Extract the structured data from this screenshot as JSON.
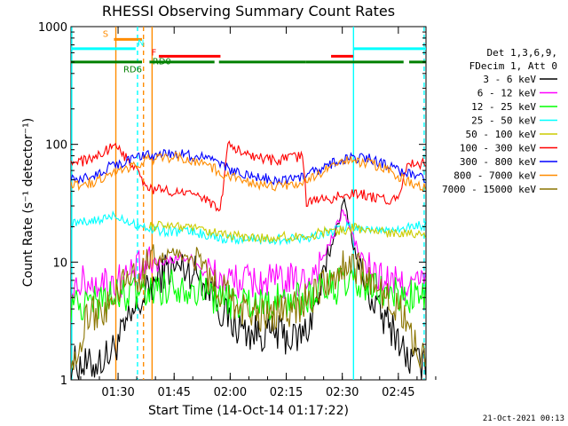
{
  "chart_data": {
    "type": "line",
    "title": "RHESSI Observing Summary Count Rates",
    "xlabel": "Start Time (14-Oct-14 01:17:22)",
    "ylabel": "Count Rate (s⁻¹ detector⁻¹)",
    "xlim_min": [
      0,
      95
    ],
    "x_ticks": [
      {
        "t": 12.6,
        "label": "01:30"
      },
      {
        "t": 27.6,
        "label": "01:45"
      },
      {
        "t": 42.6,
        "label": "02:00"
      },
      {
        "t": 57.6,
        "label": "02:15"
      },
      {
        "t": 72.6,
        "label": "02:30"
      },
      {
        "t": 87.6,
        "label": "02:45"
      }
    ],
    "ylog": true,
    "ylim": [
      1,
      1000
    ],
    "y_ticks": [
      {
        "v": 1,
        "label": "1"
      },
      {
        "v": 10,
        "label": "10"
      },
      {
        "v": 100,
        "label": "100"
      },
      {
        "v": 1000,
        "label": "1000"
      }
    ],
    "legend_header": [
      "Det 1,3,6,9,",
      "FDecim 1, Att 0"
    ],
    "series": [
      {
        "name": "3 - 6 keV",
        "color": "#000000",
        "points": [
          [
            0,
            1.4
          ],
          [
            5,
            1.3
          ],
          [
            10,
            1.6
          ],
          [
            12,
            2.0
          ],
          [
            21,
            6.0
          ],
          [
            25,
            8.5
          ],
          [
            30,
            9.0
          ],
          [
            34,
            8.0
          ],
          [
            38,
            5.5
          ],
          [
            40,
            4.0
          ],
          [
            43,
            3.0
          ],
          [
            48,
            2.5
          ],
          [
            55,
            2.5
          ],
          [
            60,
            2.2
          ],
          [
            63,
            2.6
          ],
          [
            67,
            6
          ],
          [
            70,
            15
          ],
          [
            72,
            25
          ],
          [
            73,
            33
          ],
          [
            74,
            25
          ],
          [
            76,
            12
          ],
          [
            79,
            6
          ],
          [
            83,
            3.5
          ],
          [
            87,
            2.5
          ],
          [
            90,
            1.5
          ],
          [
            95,
            1.3
          ]
        ]
      },
      {
        "name": "6 - 12 keV",
        "color": "#ff00ff",
        "points": [
          [
            0,
            6.6
          ],
          [
            12,
            6.8
          ],
          [
            21,
            9.5
          ],
          [
            26,
            10.5
          ],
          [
            31,
            11.0
          ],
          [
            36,
            9.0
          ],
          [
            40,
            7.0
          ],
          [
            50,
            6.8
          ],
          [
            62,
            6.8
          ],
          [
            66,
            9
          ],
          [
            70,
            16
          ],
          [
            72,
            24
          ],
          [
            73,
            28
          ],
          [
            74,
            22
          ],
          [
            77,
            12
          ],
          [
            81,
            8
          ],
          [
            86,
            6.5
          ],
          [
            95,
            6.5
          ]
        ]
      },
      {
        "name": "12 - 25 keV",
        "color": "#00ff00",
        "points": [
          [
            0,
            4.2
          ],
          [
            12,
            5.0
          ],
          [
            21,
            5.8
          ],
          [
            28,
            6.5
          ],
          [
            35,
            6.0
          ],
          [
            40,
            4.8
          ],
          [
            50,
            4.5
          ],
          [
            62,
            4.8
          ],
          [
            68,
            6
          ],
          [
            74,
            6.5
          ],
          [
            80,
            6
          ],
          [
            86,
            5.2
          ],
          [
            95,
            5.0
          ]
        ]
      },
      {
        "name": "25 - 50 keV",
        "color": "#00ffff",
        "points": [
          [
            0,
            21
          ],
          [
            6,
            22
          ],
          [
            12,
            25
          ],
          [
            21,
            19
          ],
          [
            25,
            18.5
          ],
          [
            33,
            18
          ],
          [
            40,
            16
          ],
          [
            50,
            15.5
          ],
          [
            62,
            16
          ],
          [
            70,
            18.5
          ],
          [
            75,
            20
          ],
          [
            82,
            18.5
          ],
          [
            88,
            19.5
          ],
          [
            95,
            20.5
          ]
        ]
      },
      {
        "name": "50 - 100 keV",
        "color": "#cccc00",
        "points": [
          [
            21,
            20
          ],
          [
            28,
            20.5
          ],
          [
            35,
            18.5
          ],
          [
            40,
            17
          ],
          [
            50,
            16
          ],
          [
            62,
            16.5
          ],
          [
            70,
            18.5
          ],
          [
            76,
            19.5
          ],
          [
            83,
            18
          ],
          [
            88,
            18
          ],
          [
            95,
            17.5
          ]
        ]
      },
      {
        "name": "100 - 300 keV",
        "color": "#ff0000",
        "points": [
          [
            0,
            70
          ],
          [
            6,
            74
          ],
          [
            12,
            100
          ],
          [
            21,
            42
          ],
          [
            28,
            40
          ],
          [
            35,
            35
          ],
          [
            40,
            28
          ],
          [
            42,
            100
          ],
          [
            48,
            80
          ],
          [
            55,
            72
          ],
          [
            62,
            80
          ],
          [
            63,
            32
          ],
          [
            70,
            35
          ],
          [
            76,
            39
          ],
          [
            83,
            34
          ],
          [
            88,
            34
          ],
          [
            90,
            70
          ],
          [
            95,
            68
          ]
        ]
      },
      {
        "name": "300 - 800 keV",
        "color": "#0000ff",
        "points": [
          [
            0,
            50
          ],
          [
            6,
            55
          ],
          [
            12,
            68
          ],
          [
            21,
            82
          ],
          [
            28,
            84
          ],
          [
            35,
            78
          ],
          [
            40,
            66
          ],
          [
            46,
            55
          ],
          [
            55,
            50
          ],
          [
            62,
            52
          ],
          [
            68,
            65
          ],
          [
            74,
            77
          ],
          [
            80,
            76
          ],
          [
            86,
            63
          ],
          [
            90,
            56
          ],
          [
            95,
            52
          ]
        ]
      },
      {
        "name": "800 - 7000 keV",
        "color": "#ff8c00",
        "points": [
          [
            0,
            44
          ],
          [
            6,
            48
          ],
          [
            12,
            58
          ],
          [
            21,
            75
          ],
          [
            28,
            78
          ],
          [
            35,
            70
          ],
          [
            40,
            58
          ],
          [
            46,
            48
          ],
          [
            55,
            44
          ],
          [
            62,
            46
          ],
          [
            68,
            60
          ],
          [
            74,
            72
          ],
          [
            80,
            70
          ],
          [
            86,
            57
          ],
          [
            90,
            48
          ],
          [
            95,
            44
          ]
        ]
      },
      {
        "name": "7000 - 15000 keV",
        "color": "#8b7500",
        "points": [
          [
            0,
            1.5
          ],
          [
            5,
            3.5
          ],
          [
            10,
            4.0
          ],
          [
            12,
            5.5
          ],
          [
            21,
            9.5
          ],
          [
            27,
            12
          ],
          [
            31,
            11
          ],
          [
            36,
            8
          ],
          [
            40,
            5.8
          ],
          [
            44,
            4.5
          ],
          [
            50,
            3.5
          ],
          [
            58,
            3.8
          ],
          [
            64,
            5
          ],
          [
            70,
            8
          ],
          [
            74,
            9.5
          ],
          [
            78,
            8.5
          ],
          [
            83,
            5.5
          ],
          [
            88,
            4.0
          ],
          [
            92,
            2.0
          ],
          [
            95,
            1.5
          ]
        ]
      }
    ],
    "annotations": [
      {
        "text": "S",
        "t": 8.5,
        "v": 820,
        "color": "#ff8c00"
      },
      {
        "text": "N",
        "t": 17.8,
        "v": 690,
        "color": "#00ffff"
      },
      {
        "text": "F",
        "t": 21.5,
        "v": 570,
        "color": "#ff0000"
      },
      {
        "text": "RD0",
        "t": 21.8,
        "v": 480,
        "color": "#008000"
      },
      {
        "text": "RD6",
        "t": 14.0,
        "v": 410,
        "color": "#008000"
      }
    ],
    "flag_bars": [
      {
        "name": "S",
        "color": "#ff8c00",
        "v": 780,
        "ranges": [
          [
            11.5,
            19
          ]
        ]
      },
      {
        "name": "N",
        "color": "#00ffff",
        "v": 650,
        "ranges": [
          [
            0,
            17.3
          ],
          [
            75.5,
            95
          ]
        ]
      },
      {
        "name": "F",
        "color": "#ff0000",
        "v": 560,
        "ranges": [
          [
            23.5,
            40.0
          ],
          [
            69.6,
            75.5
          ]
        ]
      },
      {
        "name": "RD0",
        "color": "#008000",
        "v": 500,
        "ranges": [
          [
            0,
            19
          ],
          [
            21,
            38.4
          ],
          [
            39.6,
            62.9
          ],
          [
            62.9,
            89.0
          ],
          [
            90.5,
            95
          ]
        ]
      }
    ],
    "vertical_lines": [
      {
        "t": 0.2,
        "color": "#00ffff",
        "dashed": false
      },
      {
        "t": 12.0,
        "color": "#ff8c00",
        "dashed": false
      },
      {
        "t": 17.8,
        "color": "#00ffff",
        "dashed": true
      },
      {
        "t": 19.4,
        "color": "#ff8c00",
        "dashed": true
      },
      {
        "t": 21.7,
        "color": "#ff8c00",
        "dashed": false
      },
      {
        "t": 75.6,
        "color": "#00ffff",
        "dashed": false
      },
      {
        "t": 94.5,
        "color": "#00ffff",
        "dashed": true
      }
    ]
  },
  "footer_date": "21-Oct-2021 00:13"
}
